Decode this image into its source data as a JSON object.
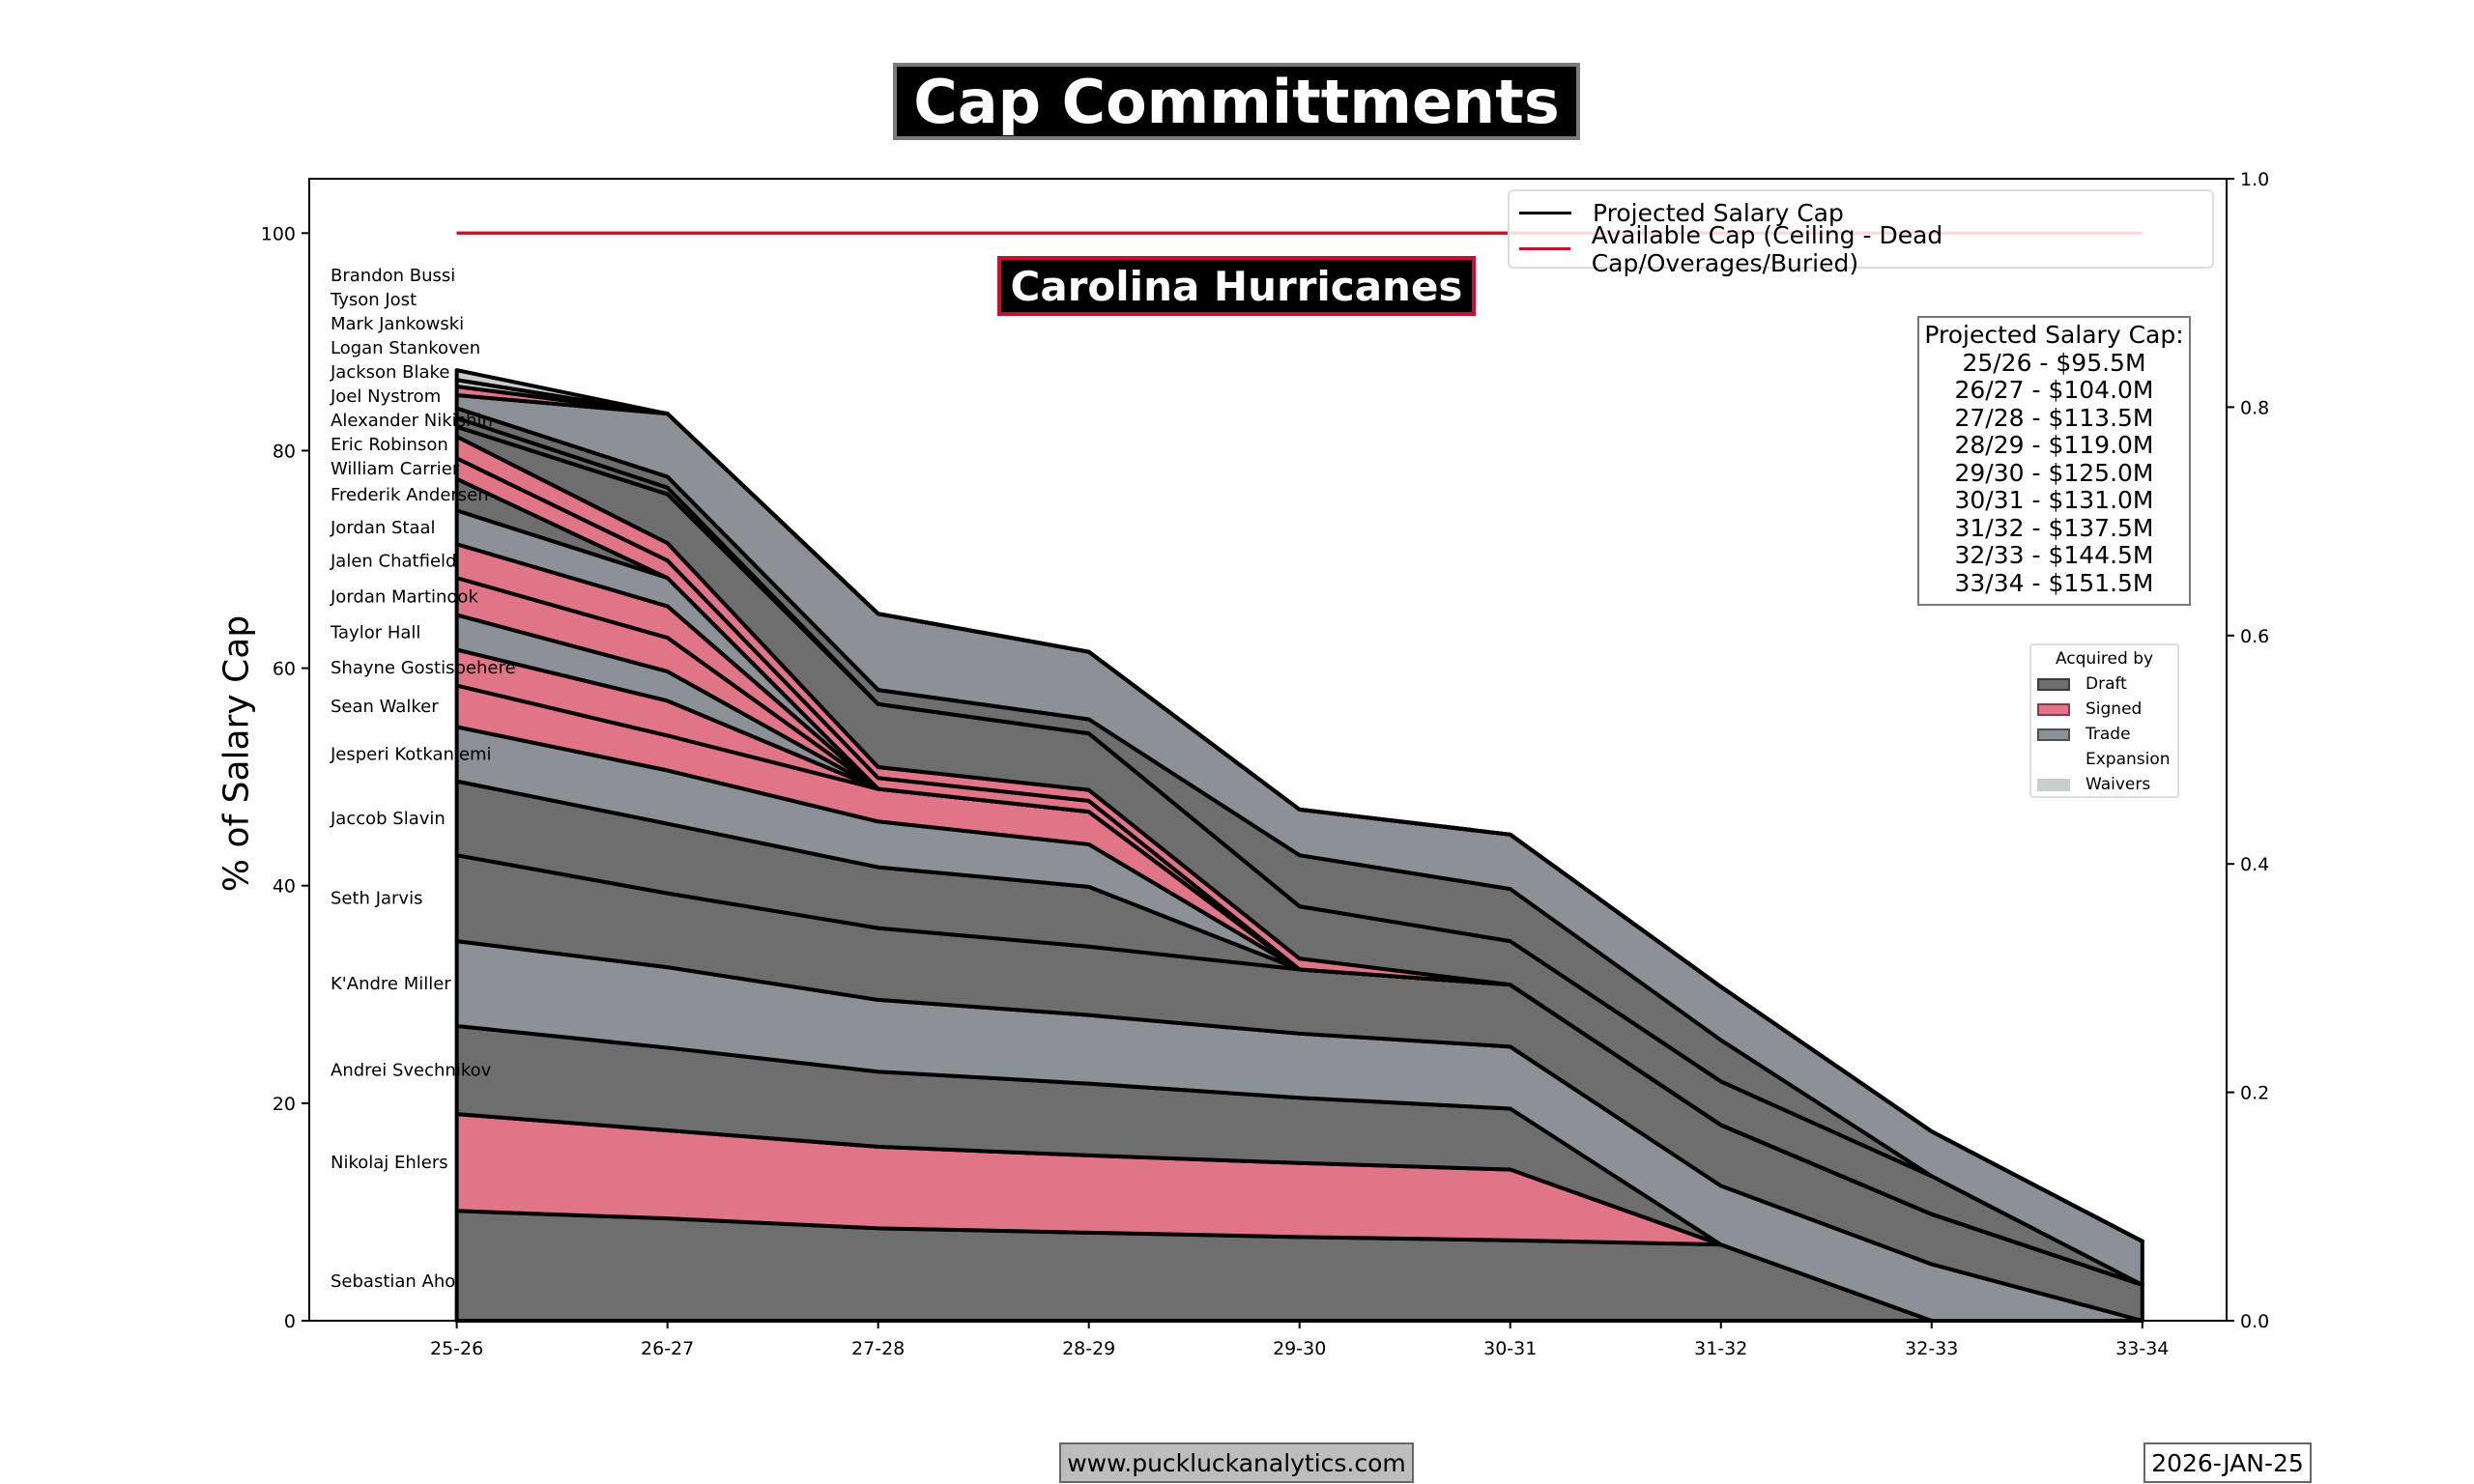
{
  "title": "Cap Committments",
  "team": "Carolina Hurricanes",
  "footer": {
    "website": "www.puckluckanalytics.com",
    "date": "2026-JAN-25"
  },
  "legend_lines": [
    {
      "label": "Projected Salary Cap",
      "color": "#000000"
    },
    {
      "label": "Available Cap (Ceiling - Dead Cap/Overages/Buried)",
      "color": "#c8102e"
    }
  ],
  "cap_box": {
    "title": "Projected Salary Cap:",
    "lines": [
      "25/26 - $95.5M",
      "26/27 - $104.0M",
      "27/28 - $113.5M",
      "28/29 - $119.0M",
      "29/30 - $125.0M",
      "30/31 - $131.0M",
      "31/32 - $137.5M",
      "32/33 - $144.5M",
      "33/34 - $151.5M"
    ]
  },
  "acquired_legend": {
    "title": "Acquired by",
    "items": [
      {
        "label": "Draft",
        "color": "#6e6e6e"
      },
      {
        "label": "Signed",
        "color": "#e07587"
      },
      {
        "label": "Trade",
        "color": "#8c9198"
      },
      {
        "label": "Expansion",
        "color": "#ffffff"
      },
      {
        "label": "Waivers",
        "color": "#c9cdcd"
      }
    ]
  },
  "chart_data": {
    "type": "area",
    "stacked": true,
    "ylabel": "% of Salary Cap",
    "xlabel": "",
    "categories": [
      "25-26",
      "26-27",
      "27-28",
      "28-29",
      "29-30",
      "30-31",
      "31-32",
      "32-33",
      "33-34"
    ],
    "xlim": [
      -0.7,
      8.4
    ],
    "ylim": [
      0,
      105
    ],
    "yticks": [
      0,
      20,
      40,
      60,
      80,
      100
    ],
    "y2ticks": [
      "0.0",
      "0.2",
      "0.4",
      "0.6",
      "0.8",
      "1.0"
    ],
    "available_cap_line": 100,
    "projected_cap_line": 100,
    "series": [
      {
        "name": "Sebastian Aho",
        "acquired": "Draft",
        "values": [
          10.1,
          9.4,
          8.5,
          8.1,
          7.7,
          7.4,
          7.0,
          0,
          0
        ]
      },
      {
        "name": "Nikolaj Ehlers",
        "acquired": "Signed",
        "values": [
          8.9,
          8.1,
          7.5,
          7.1,
          6.8,
          6.5,
          0,
          0,
          0
        ]
      },
      {
        "name": "Andrei Svechnikov",
        "acquired": "Draft",
        "values": [
          8.1,
          7.6,
          6.9,
          6.6,
          6.0,
          5.6,
          0,
          0,
          0
        ]
      },
      {
        "name": "K'Andre Miller",
        "acquired": "Trade",
        "values": [
          7.8,
          7.4,
          6.6,
          6.3,
          5.9,
          5.7,
          5.4,
          5.2,
          0
        ]
      },
      {
        "name": "Seth Jarvis",
        "acquired": "Draft",
        "values": [
          7.9,
          6.8,
          6.6,
          6.3,
          5.9,
          5.7,
          5.6,
          4.6,
          3.3
        ]
      },
      {
        "name": "Jaccob Slavin",
        "acquired": "Draft",
        "values": [
          6.8,
          6.4,
          5.6,
          5.5,
          0,
          0,
          0,
          0,
          0
        ]
      },
      {
        "name": "Jesperi Kotkaniemi",
        "acquired": "Trade",
        "values": [
          5.0,
          4.9,
          4.2,
          3.9,
          0,
          0,
          0,
          0,
          0
        ]
      },
      {
        "name": "Sean Walker",
        "acquired": "Signed",
        "values": [
          3.8,
          3.2,
          3.0,
          3.0,
          0,
          0,
          0,
          0,
          0
        ]
      },
      {
        "name": "Shayne Gostisbehere",
        "acquired": "Signed",
        "values": [
          3.3,
          3.2,
          0,
          0,
          0,
          0,
          0,
          0,
          0
        ]
      },
      {
        "name": "Taylor Hall",
        "acquired": "Trade",
        "values": [
          3.2,
          2.7,
          0,
          0,
          0,
          0,
          0,
          0,
          0
        ]
      },
      {
        "name": "Jordan Martinook",
        "acquired": "Signed",
        "values": [
          3.4,
          3.1,
          0,
          0,
          0,
          0,
          0,
          0,
          0
        ]
      },
      {
        "name": "Jalen Chatfield",
        "acquired": "Signed",
        "values": [
          3.1,
          2.9,
          0,
          0,
          0,
          0,
          0,
          0,
          0
        ]
      },
      {
        "name": "Jordan Staal",
        "acquired": "Trade",
        "values": [
          3.1,
          2.6,
          0,
          0,
          0,
          0,
          0,
          0,
          0
        ]
      },
      {
        "name": "Frederik Andersen",
        "acquired": "Draft",
        "values": [
          2.9,
          0,
          0,
          0,
          0,
          0,
          0,
          0,
          0
        ]
      },
      {
        "name": "William Carrier",
        "acquired": "Signed",
        "values": [
          1.9,
          1.6,
          1.0,
          1.0,
          0,
          0,
          0,
          0,
          0
        ]
      },
      {
        "name": "Eric Robinson",
        "acquired": "Signed",
        "values": [
          2.0,
          1.6,
          1.0,
          1.0,
          1.0,
          0,
          0,
          0,
          0
        ]
      },
      {
        "name": "Alexander Nikishin",
        "acquired": "Draft",
        "values": [
          0.9,
          4.5,
          5.8,
          5.2,
          4.8,
          4.0,
          4.0,
          3.5,
          0
        ]
      },
      {
        "name": "Joel Nystrom",
        "acquired": "Draft",
        "values": [
          0.8,
          0.6,
          0,
          0,
          0,
          0,
          0,
          0,
          0
        ]
      },
      {
        "name": "Jackson Blake",
        "acquired": "Draft",
        "values": [
          0.9,
          1.0,
          1.3,
          1.3,
          4.7,
          4.8,
          3.8,
          0,
          0
        ]
      },
      {
        "name": "Logan Stankoven",
        "acquired": "Trade",
        "values": [
          1.2,
          5.8,
          7.0,
          6.2,
          4.2,
          5.0,
          4.9,
          4.1,
          4.0
        ]
      },
      {
        "name": "Mark Jankowski",
        "acquired": "Signed",
        "values": [
          0.8,
          0,
          0,
          0,
          0,
          0,
          0,
          0,
          0
        ]
      },
      {
        "name": "Tyson Jost",
        "acquired": "Waivers",
        "values": [
          0.6,
          0,
          0,
          0,
          0,
          0,
          0,
          0,
          0
        ]
      },
      {
        "name": "Brandon Bussi",
        "acquired": "Waivers",
        "values": [
          0.9,
          0,
          0,
          0,
          0,
          0,
          0,
          0,
          0
        ]
      }
    ]
  }
}
